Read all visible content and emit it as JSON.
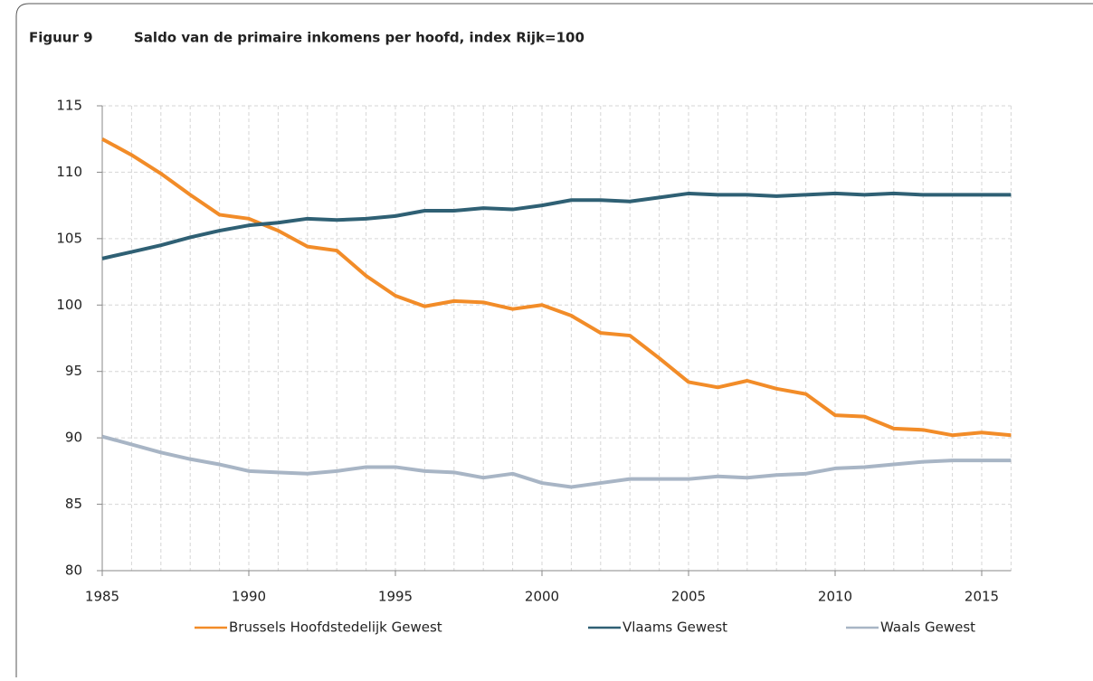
{
  "chart_data": {
    "type": "line",
    "label": "Figuur 9",
    "title": "Saldo van de primaire inkomens per hoofd, index Rijk=100",
    "x": [
      1985,
      1986,
      1987,
      1988,
      1989,
      1990,
      1991,
      1992,
      1993,
      1994,
      1995,
      1996,
      1997,
      1998,
      1999,
      2000,
      2001,
      2002,
      2003,
      2004,
      2005,
      2006,
      2007,
      2008,
      2009,
      2010,
      2011,
      2012,
      2013,
      2014,
      2015,
      2016
    ],
    "series": [
      {
        "name": "Brussels Hoofdstedelijk Gewest",
        "color": "#f28c28",
        "values": [
          112.5,
          111.3,
          109.9,
          108.3,
          106.8,
          106.5,
          105.6,
          104.4,
          104.1,
          102.2,
          100.7,
          99.9,
          100.3,
          100.2,
          99.7,
          100.0,
          99.2,
          97.9,
          97.7,
          96.0,
          94.2,
          93.8,
          94.3,
          93.7,
          93.3,
          91.7,
          91.6,
          90.7,
          90.6,
          90.2,
          90.4,
          90.2
        ]
      },
      {
        "name": "Vlaams Gewest",
        "color": "#2f6074",
        "values": [
          103.5,
          104.0,
          104.5,
          105.1,
          105.6,
          106.0,
          106.2,
          106.5,
          106.4,
          106.5,
          106.7,
          107.1,
          107.1,
          107.3,
          107.2,
          107.5,
          107.9,
          107.9,
          107.8,
          108.1,
          108.4,
          108.3,
          108.3,
          108.2,
          108.3,
          108.4,
          108.3,
          108.4,
          108.3,
          108.3,
          108.3,
          108.3
        ]
      },
      {
        "name": "Waals Gewest",
        "color": "#a8b5c5",
        "values": [
          90.1,
          89.5,
          88.9,
          88.4,
          88.0,
          87.5,
          87.4,
          87.3,
          87.5,
          87.8,
          87.8,
          87.5,
          87.4,
          87.0,
          87.3,
          86.6,
          86.3,
          86.6,
          86.9,
          86.9,
          86.9,
          87.1,
          87.0,
          87.2,
          87.3,
          87.7,
          87.8,
          88.0,
          88.2,
          88.3,
          88.3,
          88.3
        ]
      }
    ],
    "xlim": [
      1985,
      2016
    ],
    "xticks": [
      1985,
      1990,
      1995,
      2000,
      2005,
      2010,
      2015
    ],
    "ylim": [
      80,
      115
    ],
    "yticks": [
      80,
      85,
      90,
      95,
      100,
      105,
      110,
      115
    ],
    "grid": true,
    "legend": "bottom"
  }
}
